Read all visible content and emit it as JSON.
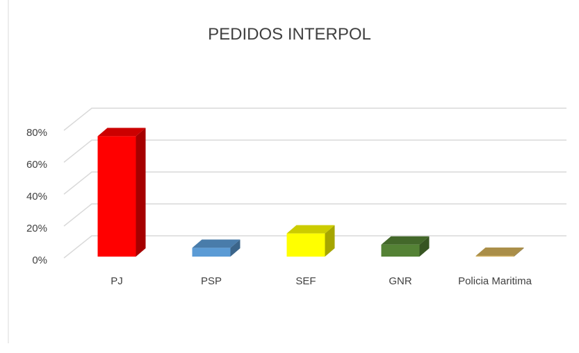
{
  "chart_data": {
    "type": "bar3d",
    "title": "PEDIDOS INTERPOL",
    "categories": [
      "PJ",
      "PSP",
      "SEF",
      "GNR",
      "Policia Maritima"
    ],
    "values": [
      75.5,
      5.5,
      14.5,
      7.5,
      0.5
    ],
    "colors": [
      "#ff0000",
      "#5b9bd5",
      "#ffff00",
      "#548235",
      "#d4b15a"
    ],
    "ylim": [
      0,
      80
    ],
    "yticks": [
      {
        "value": 0,
        "label": "0%"
      },
      {
        "value": 20,
        "label": "20%"
      },
      {
        "value": 40,
        "label": "40%"
      },
      {
        "value": 60,
        "label": "60%"
      },
      {
        "value": 80,
        "label": "80%"
      }
    ],
    "grid": true
  }
}
